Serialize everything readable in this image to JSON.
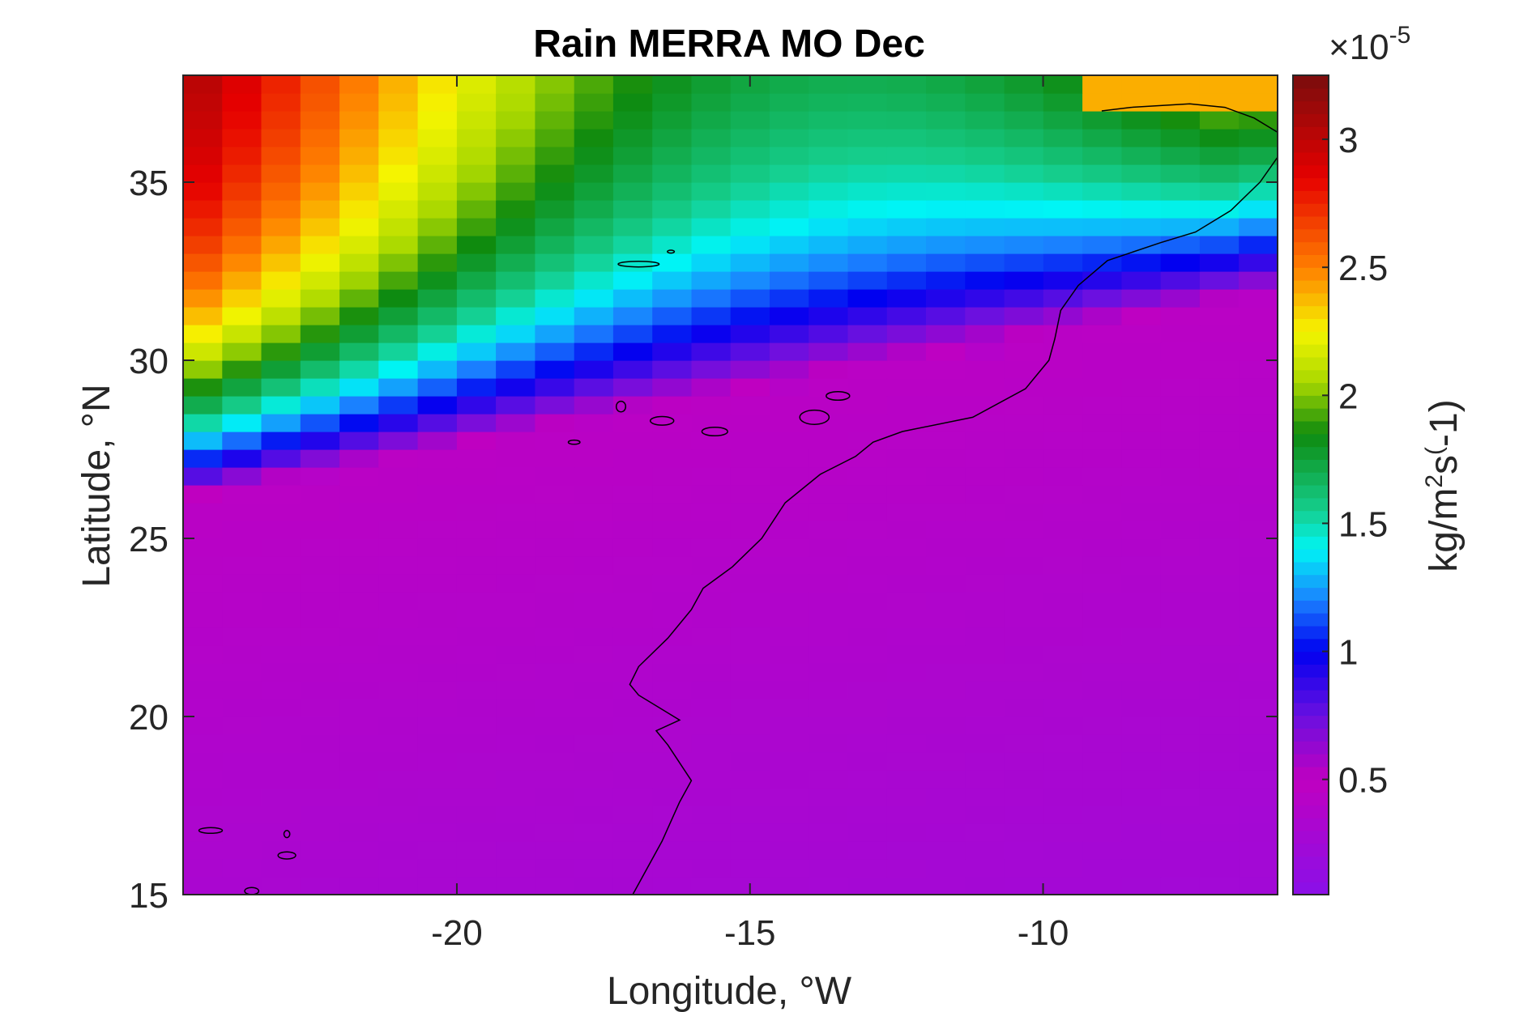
{
  "chart_data": {
    "type": "heatmap",
    "title": "Rain MERRA MO Dec",
    "xlabel": "Longitude, °W",
    "ylabel": "Latitude, °N",
    "xlim": [
      -24.67,
      -6
    ],
    "ylim": [
      15,
      38
    ],
    "xticks": [
      -20,
      -15,
      -10
    ],
    "xtick_labels": [
      "-20",
      "-15",
      "-10"
    ],
    "yticks": [
      15,
      20,
      25,
      30,
      35
    ],
    "ytick_labels": [
      "15",
      "20",
      "25",
      "30",
      "35"
    ],
    "grid_resolution": {
      "dlon": 0.667,
      "dlat": 0.5
    },
    "colorbar": {
      "label_prefix": "kg/m",
      "label_sup": "2",
      "label_mid": "s",
      "label_sup2": "(",
      "label_suffix": "-1)",
      "multiplier_prefix": "×10",
      "multiplier_exp": "-5",
      "range": [
        0.05,
        3.25
      ],
      "ticks": [
        0.5,
        1,
        1.5,
        2,
        2.5,
        3
      ],
      "tick_labels": [
        "0.5",
        "1",
        "1.5",
        "2",
        "2.5",
        "3"
      ],
      "colormap": [
        "#7a0d0d",
        "#e60000",
        "#ff7f00",
        "#f5f500",
        "#a8d800",
        "#0e8a0e",
        "#15cf8f",
        "#00f5f5",
        "#1a80ff",
        "#0000f0",
        "#6a10e0",
        "#c000c0",
        "#8a10e8"
      ],
      "colormap_stops": [
        3.25,
        2.85,
        2.5,
        2.25,
        2.05,
        1.85,
        1.55,
        1.4,
        1.2,
        1.0,
        0.75,
        0.5,
        0.05
      ]
    },
    "field_description_units": "1e-5 kg/m^2/s",
    "coastline_visible": true,
    "grid": false,
    "colors": {
      "background": "#ffffff",
      "axes": "#262626",
      "coastline": "#000000"
    }
  }
}
